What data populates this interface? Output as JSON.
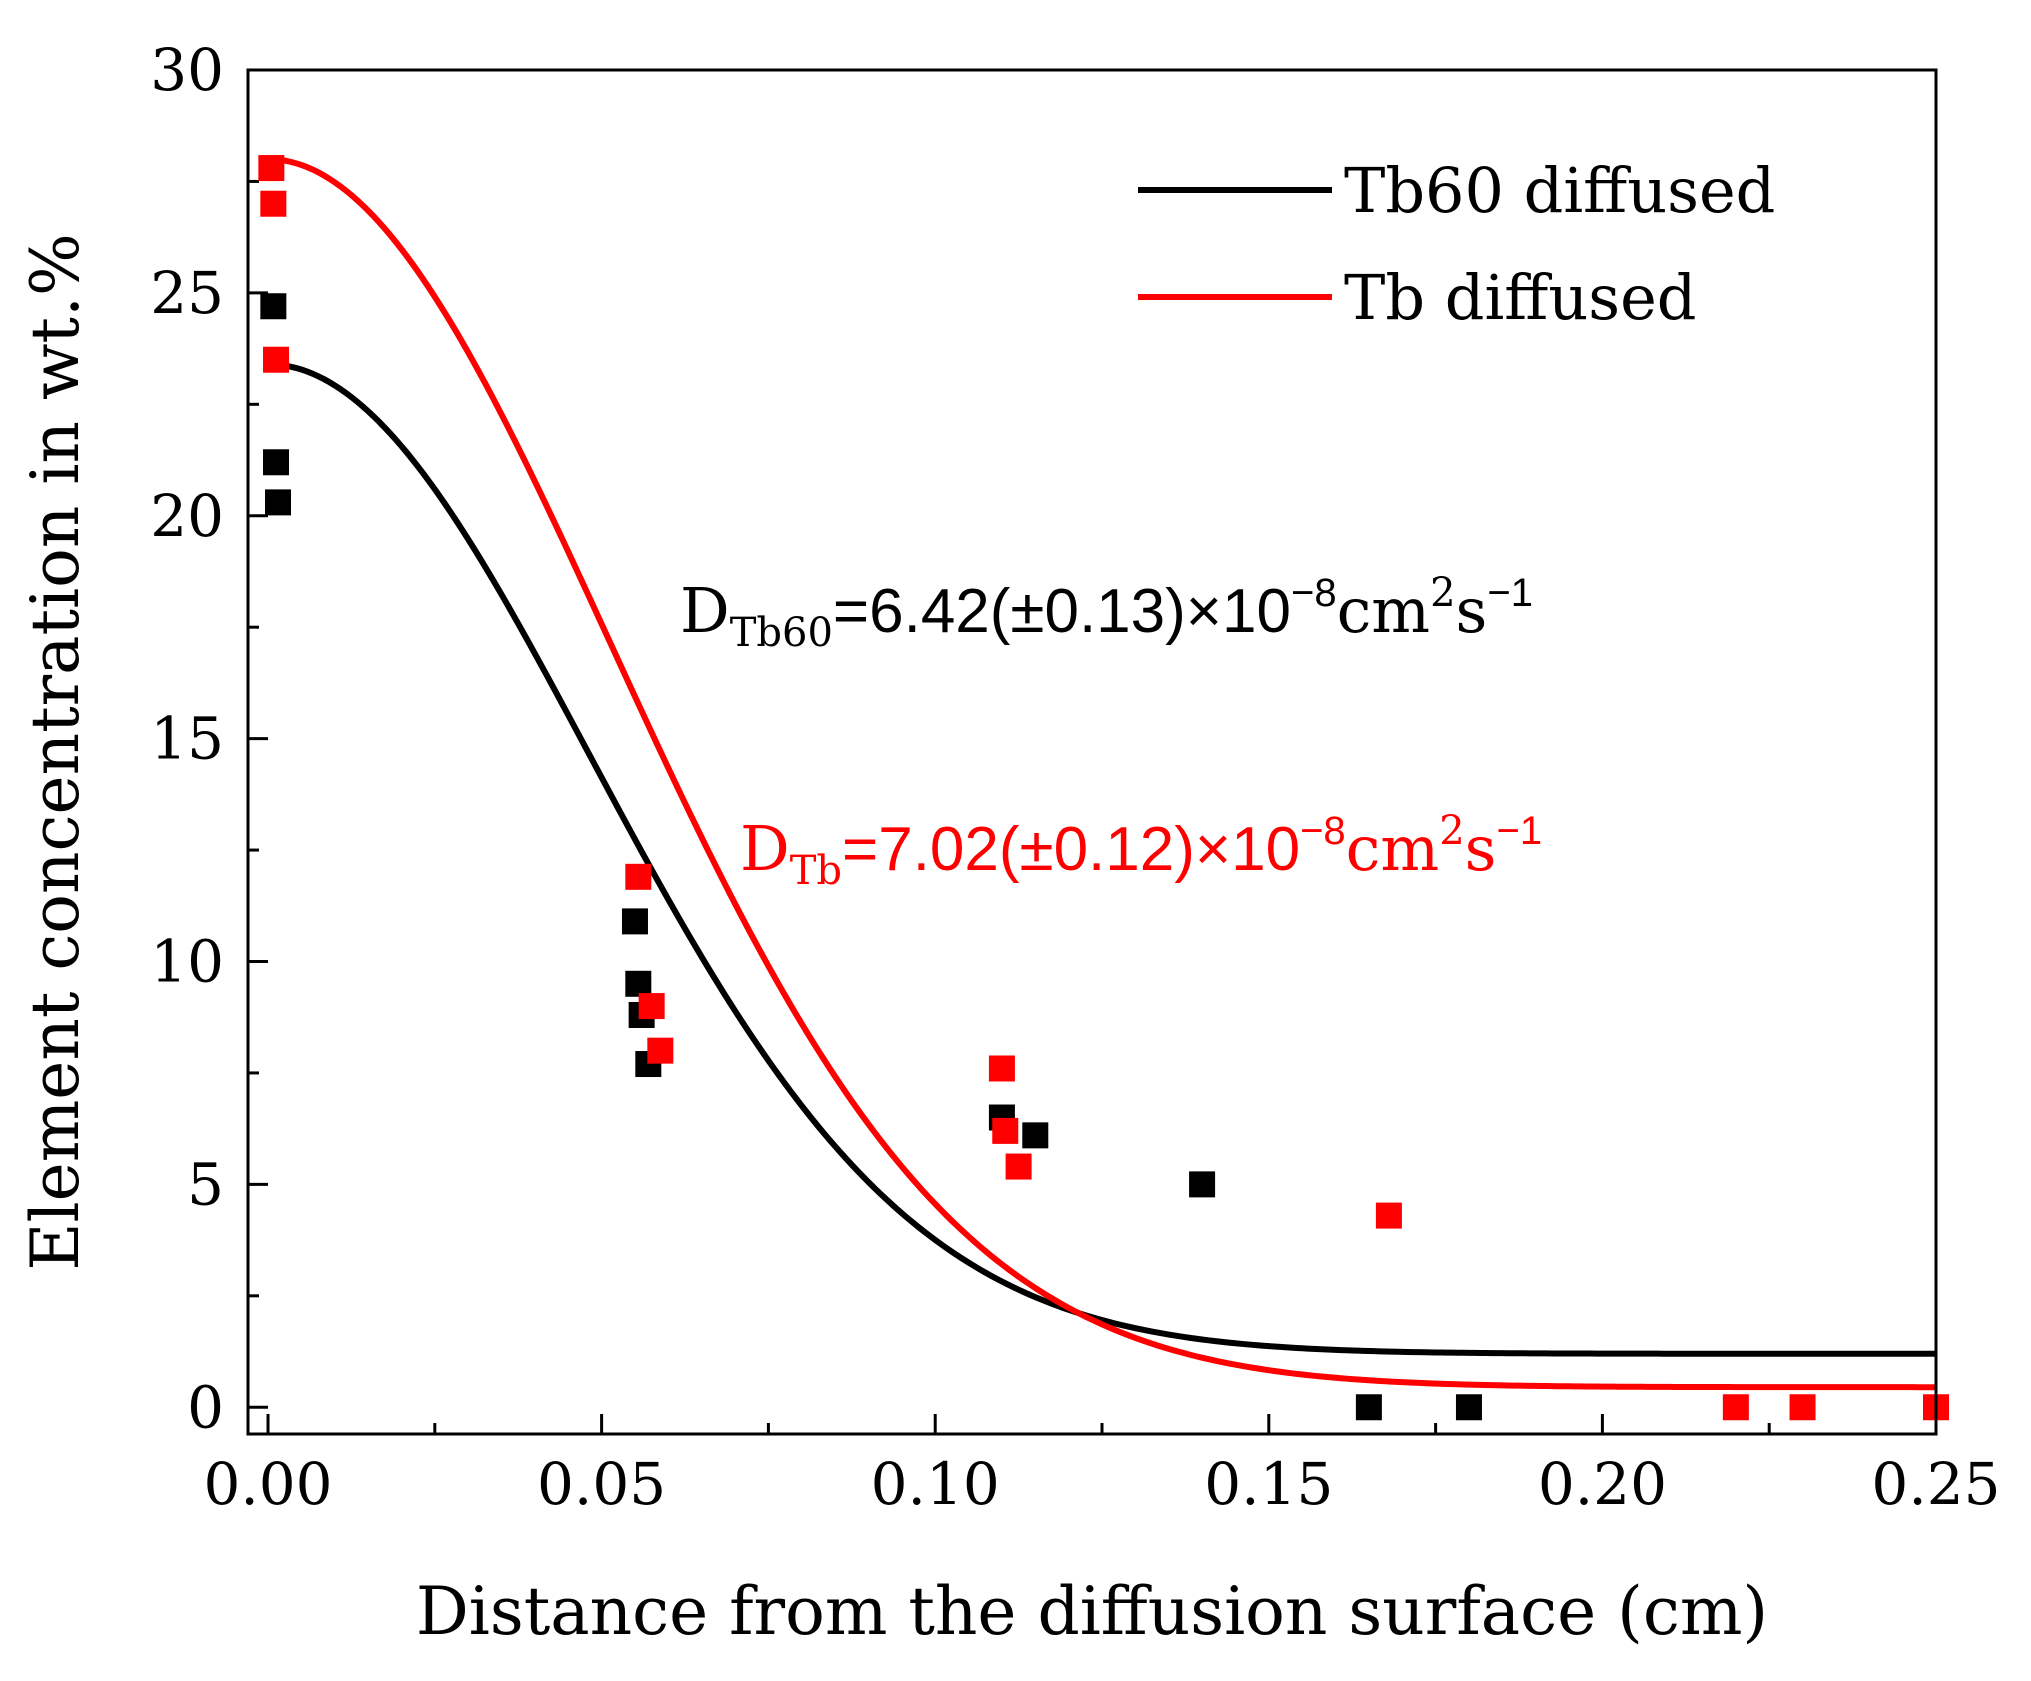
{
  "chart_data": {
    "type": "scatter",
    "xlabel": "Distance from the diffusion surface (cm)",
    "ylabel": "Element concentration in wt.%",
    "xlim": [
      -0.003,
      0.25
    ],
    "ylim": [
      -0.6,
      30
    ],
    "xticks": [
      0.0,
      0.05,
      0.1,
      0.15,
      0.2,
      0.25
    ],
    "xtick_labels": [
      "0.00",
      "0.05",
      "0.10",
      "0.15",
      "0.20",
      "0.25"
    ],
    "yticks": [
      0,
      5,
      10,
      15,
      20,
      25,
      30
    ],
    "ytick_labels": [
      "0",
      "5",
      "10",
      "15",
      "20",
      "25",
      "30"
    ],
    "legend_position": "top-right",
    "series": [
      {
        "name": "Tb60 diffused",
        "color": "#000000",
        "points": [
          [
            0.0008,
            24.7
          ],
          [
            0.0012,
            21.2
          ],
          [
            0.0015,
            20.3
          ],
          [
            0.055,
            10.9
          ],
          [
            0.0555,
            9.5
          ],
          [
            0.056,
            8.8
          ],
          [
            0.057,
            7.7
          ],
          [
            0.11,
            6.5
          ],
          [
            0.115,
            6.1
          ],
          [
            0.14,
            5.0
          ],
          [
            0.165,
            0.0
          ],
          [
            0.18,
            0.0
          ]
        ],
        "fit": {
          "c0": 23.4,
          "cinf": 1.2,
          "length": 0.068
        }
      },
      {
        "name": "Tb diffused",
        "color": "#ff0000",
        "points": [
          [
            0.0005,
            27.8
          ],
          [
            0.0008,
            27.0
          ],
          [
            0.0012,
            23.5
          ],
          [
            0.0555,
            11.9
          ],
          [
            0.0575,
            9.0
          ],
          [
            0.0588,
            8.0
          ],
          [
            0.11,
            7.6
          ],
          [
            0.1105,
            6.2
          ],
          [
            0.1125,
            5.4
          ],
          [
            0.168,
            4.3
          ],
          [
            0.22,
            0.0
          ],
          [
            0.23,
            0.0
          ],
          [
            0.25,
            0.0
          ]
        ],
        "fit": {
          "c0": 28.0,
          "cinf": 0.45,
          "length": 0.0725
        }
      }
    ],
    "annotations": [
      {
        "id": "d_tb60",
        "color": "#000000",
        "base": "D",
        "subscript": "Tb60",
        "value": "=6.42(±0.13)×10",
        "exp": "−8",
        "unit1": "cm",
        "unit_exp1": "2",
        "unit2": "s",
        "unit_exp2": "−1"
      },
      {
        "id": "d_tb",
        "color": "#ff0000",
        "base": "D",
        "subscript": "Tb",
        "value": "=7.02(±0.12)×10",
        "exp": "−8",
        "unit1": "cm",
        "unit_exp1": "2",
        "unit2": "s",
        "unit_exp2": "−1"
      }
    ]
  }
}
